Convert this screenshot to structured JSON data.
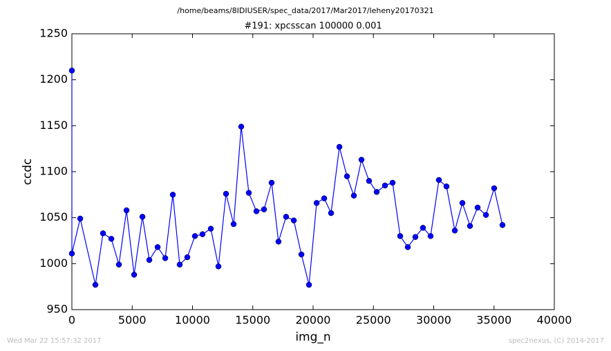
{
  "header": "/home/beams/8IDIUSER/spec_data/2017/Mar2017/leheny20170321",
  "footer_left": "Wed Mar 22 15:57:32 2017",
  "footer_right": "spec2nexus, (C) 2014-2017",
  "chart_data": {
    "type": "line",
    "title": "#191: xpcsscan 100000 0.001",
    "x_label": "img_n",
    "y_label": "ccdc",
    "color": "#0000ff",
    "x": [
      0,
      0,
      690,
      1950,
      2580,
      3270,
      3900,
      4530,
      5160,
      5850,
      6420,
      7110,
      7740,
      8370,
      8940,
      9570,
      10200,
      10830,
      11520,
      12150,
      12780,
      13410,
      14040,
      14670,
      15300,
      15930,
      16560,
      17130,
      17760,
      18400,
      19030,
      19660,
      20290,
      20920,
      21490,
      22180,
      22810,
      23380,
      24010,
      24640,
      25270,
      25960,
      26590,
      27220,
      27850,
      28480,
      29110,
      29740,
      30430,
      31060,
      31750,
      32380,
      33010,
      33640,
      34330,
      35010,
      35700
    ],
    "values": [
      1210,
      1011,
      1049,
      977,
      1033,
      1027,
      999,
      1058,
      988,
      1051,
      1004,
      1018,
      1006,
      1075,
      999,
      1007,
      1030,
      1032,
      1038,
      997,
      1076,
      1043,
      1149,
      1077,
      1057,
      1059,
      1088,
      1024,
      1051,
      1047,
      1010,
      977,
      1066,
      1071,
      1055,
      1127,
      1095,
      1074,
      1113,
      1090,
      1078,
      1085,
      1088,
      1030,
      1018,
      1029,
      1039,
      1030,
      1091,
      1084,
      1036,
      1066,
      1041,
      1061,
      1053,
      1082,
      1042
    ],
    "xlim": [
      0,
      40000
    ],
    "xticks": [
      0,
      5000,
      10000,
      15000,
      20000,
      25000,
      30000,
      35000,
      40000
    ],
    "ylim": [
      950,
      1250
    ],
    "yticks": [
      950,
      1000,
      1050,
      1100,
      1150,
      1200,
      1250
    ]
  }
}
